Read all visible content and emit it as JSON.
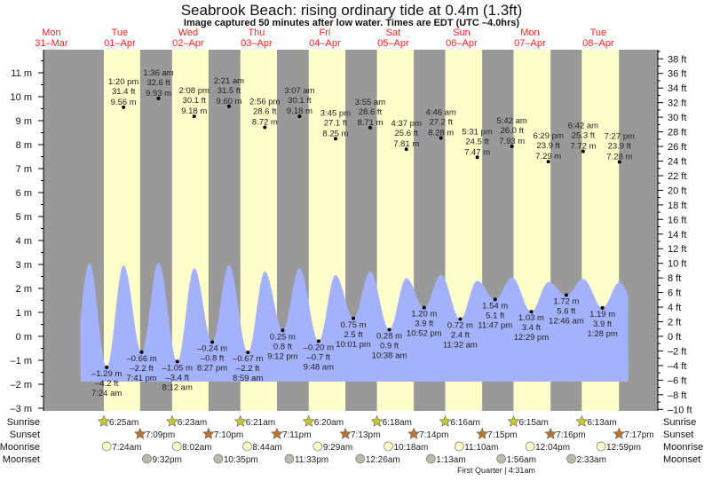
{
  "chart_data": {
    "type": "area",
    "title": "Seabrook Beach: rising  ordinary tide at 0.4m (1.3ft)",
    "subtitle": "Image captured 50 minutes after low water. Times are EDT (UTC –4.0hrs)",
    "day_labels": [
      {
        "dow": "Mon",
        "date": "31–Mar"
      },
      {
        "dow": "Tue",
        "date": "01–Apr"
      },
      {
        "dow": "Wed",
        "date": "02–Apr"
      },
      {
        "dow": "Thu",
        "date": "03–Apr"
      },
      {
        "dow": "Fri",
        "date": "04–Apr"
      },
      {
        "dow": "Sat",
        "date": "05–Apr"
      },
      {
        "dow": "Sun",
        "date": "06–Apr"
      },
      {
        "dow": "Mon",
        "date": "07–Apr"
      },
      {
        "dow": "Tue",
        "date": "08–Apr"
      }
    ],
    "y_left": {
      "unit": "m",
      "range": [
        -3,
        11
      ],
      "ticks": [
        -3,
        -2,
        -1,
        0,
        1,
        2,
        3,
        4,
        5,
        6,
        7,
        8,
        9,
        10,
        11
      ]
    },
    "y_right": {
      "unit": "ft",
      "range": [
        -10,
        38
      ],
      "ticks": [
        -10,
        -8,
        -6,
        -4,
        -2,
        0,
        2,
        4,
        6,
        8,
        10,
        12,
        14,
        16,
        18,
        20,
        22,
        24,
        26,
        28,
        30,
        32,
        34,
        36,
        38
      ]
    },
    "highs": [
      {
        "day": 1,
        "time": "1:20 pm",
        "ft": "31.4 ft",
        "m": 9.56
      },
      {
        "day": 2,
        "time": "1:36 am",
        "ft": "32.6 ft",
        "m": 9.93
      },
      {
        "day": 2,
        "time": "2:08 pm",
        "ft": "30.1 ft",
        "m": 9.18
      },
      {
        "day": 3,
        "time": "2:21 am",
        "ft": "31.5 ft",
        "m": 9.6
      },
      {
        "day": 3,
        "time": "2:56 pm",
        "ft": "28.6 ft",
        "m": 8.72
      },
      {
        "day": 4,
        "time": "3:07 am",
        "ft": "30.1 ft",
        "m": 9.18
      },
      {
        "day": 4,
        "time": "3:45 pm",
        "ft": "27.1 ft",
        "m": 8.25
      },
      {
        "day": 5,
        "time": "3:55 am",
        "ft": "28.6 ft",
        "m": 8.71
      },
      {
        "day": 5,
        "time": "4:37 pm",
        "ft": "25.6 ft",
        "m": 7.81
      },
      {
        "day": 6,
        "time": "4:46 am",
        "ft": "27.2 ft",
        "m": 8.28
      },
      {
        "day": 6,
        "time": "5:31 pm",
        "ft": "24.5 ft",
        "m": 7.47
      },
      {
        "day": 7,
        "time": "5:42 am",
        "ft": "26.0 ft",
        "m": 7.93
      },
      {
        "day": 7,
        "time": "6:29 pm",
        "ft": "23.9 ft",
        "m": 7.29
      },
      {
        "day": 8,
        "time": "6:42 am",
        "ft": "25.3 ft",
        "m": 7.72
      },
      {
        "day": 8,
        "time": "7:27 pm",
        "ft": "23.9 ft",
        "m": 7.28
      }
    ],
    "lows": [
      {
        "day": 1,
        "time": "7:24 am",
        "ft": "–4.2 ft",
        "m": -1.29
      },
      {
        "day": 1,
        "time": "7:41 pm",
        "ft": "–2.2 ft",
        "m": -0.66
      },
      {
        "day": 2,
        "time": "8:12 am",
        "ft": "–3.4 ft",
        "m": -1.05
      },
      {
        "day": 2,
        "time": "8:27 pm",
        "ft": "–0.8 ft",
        "m": -0.24
      },
      {
        "day": 3,
        "time": "8:59 am",
        "ft": "–2.2 ft",
        "m": -0.67
      },
      {
        "day": 3,
        "time": "9:12 pm",
        "ft": "0.8 ft",
        "m": 0.25
      },
      {
        "day": 4,
        "time": "9:48 am",
        "ft": "–0.7 ft",
        "m": -0.2
      },
      {
        "day": 4,
        "time": "10:01 pm",
        "ft": "2.5 ft",
        "m": 0.75
      },
      {
        "day": 5,
        "time": "10:38 am",
        "ft": "0.9 ft",
        "m": 0.28
      },
      {
        "day": 5,
        "time": "10:52 pm",
        "ft": "3.9 ft",
        "m": 1.2
      },
      {
        "day": 6,
        "time": "11:32 am",
        "ft": "2.4 ft",
        "m": 0.72
      },
      {
        "day": 6,
        "time": "11:47 pm",
        "ft": "5.1 ft",
        "m": 1.54
      },
      {
        "day": 7,
        "time": "12:29 pm",
        "ft": "3.4 ft",
        "m": 1.03
      },
      {
        "day": 8,
        "time": "12:46 am",
        "ft": "5.6 ft",
        "m": 1.72
      },
      {
        "day": 8,
        "time": "1:28 pm",
        "ft": "3.9 ft",
        "m": 1.19
      }
    ],
    "sun_moon": {
      "row_labels": [
        "Sunrise",
        "Sunset",
        "Moonrise",
        "Moonset"
      ],
      "sunrise": [
        {
          "day": 1,
          "time": "6:25am"
        },
        {
          "day": 2,
          "time": "6:23am"
        },
        {
          "day": 3,
          "time": "6:21am"
        },
        {
          "day": 4,
          "time": "6:20am"
        },
        {
          "day": 5,
          "time": "6:18am"
        },
        {
          "day": 6,
          "time": "6:16am"
        },
        {
          "day": 7,
          "time": "6:15am"
        },
        {
          "day": 8,
          "time": "6:13am"
        }
      ],
      "sunset": [
        {
          "day": 1,
          "time": "7:09pm"
        },
        {
          "day": 2,
          "time": "7:10pm"
        },
        {
          "day": 3,
          "time": "7:11pm"
        },
        {
          "day": 4,
          "time": "7:13pm"
        },
        {
          "day": 5,
          "time": "7:14pm"
        },
        {
          "day": 6,
          "time": "7:15pm"
        },
        {
          "day": 7,
          "time": "7:16pm"
        },
        {
          "day": 8,
          "time": "7:17pm"
        }
      ],
      "moonrise": [
        {
          "day": 1,
          "time": "7:24am"
        },
        {
          "day": 2,
          "time": "8:02am"
        },
        {
          "day": 3,
          "time": "8:44am"
        },
        {
          "day": 4,
          "time": "9:29am"
        },
        {
          "day": 5,
          "time": "10:18am"
        },
        {
          "day": 6,
          "time": "11:10am"
        },
        {
          "day": 7,
          "time": "12:04pm"
        },
        {
          "day": 8,
          "time": "12:59pm"
        }
      ],
      "moonset": [
        {
          "day": 1,
          "time": "9:32pm"
        },
        {
          "day": 2,
          "time": "10:35pm"
        },
        {
          "day": 3,
          "time": "11:33pm"
        },
        {
          "day": 5,
          "time": "12:26am"
        },
        {
          "day": 6,
          "time": "1:13am"
        },
        {
          "day": 7,
          "time": "1:56am"
        },
        {
          "day": 8,
          "time": "2:33am"
        }
      ],
      "moon_phase": "First Quarter | 4:31am"
    },
    "colors": {
      "night": "#999999",
      "day": "#ffffcc",
      "water": "#a3b2fb",
      "day_label": "#ff2020",
      "sunrise": "#c8c832",
      "sunset": "#b87333",
      "moonrise": "#ffffcc",
      "moonset": "#bbbbaa"
    }
  }
}
